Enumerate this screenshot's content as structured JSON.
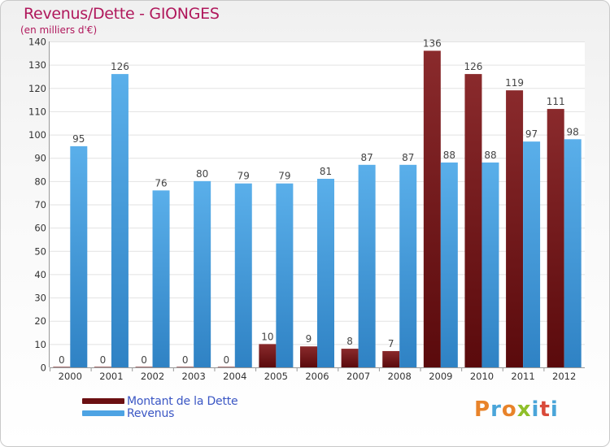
{
  "header": {
    "title": "Revenus/Dette - GIONGES",
    "subtitle": "(en milliers d'€)"
  },
  "brand": {
    "name": "Proxiti",
    "letter_colors": [
      "#e8832a",
      "#4aa5d9",
      "#e8832a",
      "#8fbf2a",
      "#4aa5d9",
      "#d94a3a",
      "#4aa5d9"
    ]
  },
  "chart_data": {
    "type": "bar",
    "categories": [
      "2000",
      "2001",
      "2002",
      "2003",
      "2004",
      "2005",
      "2006",
      "2007",
      "2008",
      "2009",
      "2010",
      "2011",
      "2012"
    ],
    "series": [
      {
        "name": "Montant de la Dette",
        "color": "#7b1a1d",
        "values": [
          0,
          0,
          0,
          0,
          0,
          10,
          9,
          8,
          7,
          136,
          126,
          119,
          111
        ]
      },
      {
        "name": "Revenus",
        "color": "#4da3e3",
        "values": [
          95,
          126,
          76,
          80,
          79,
          79,
          81,
          87,
          87,
          88,
          88,
          97,
          98
        ]
      }
    ],
    "ylim": [
      0,
      140
    ],
    "yticks": [
      0,
      10,
      20,
      30,
      40,
      50,
      60,
      70,
      80,
      90,
      100,
      110,
      120,
      130,
      140
    ],
    "grid": true,
    "legend": "bottom-left",
    "data_labels": true
  }
}
